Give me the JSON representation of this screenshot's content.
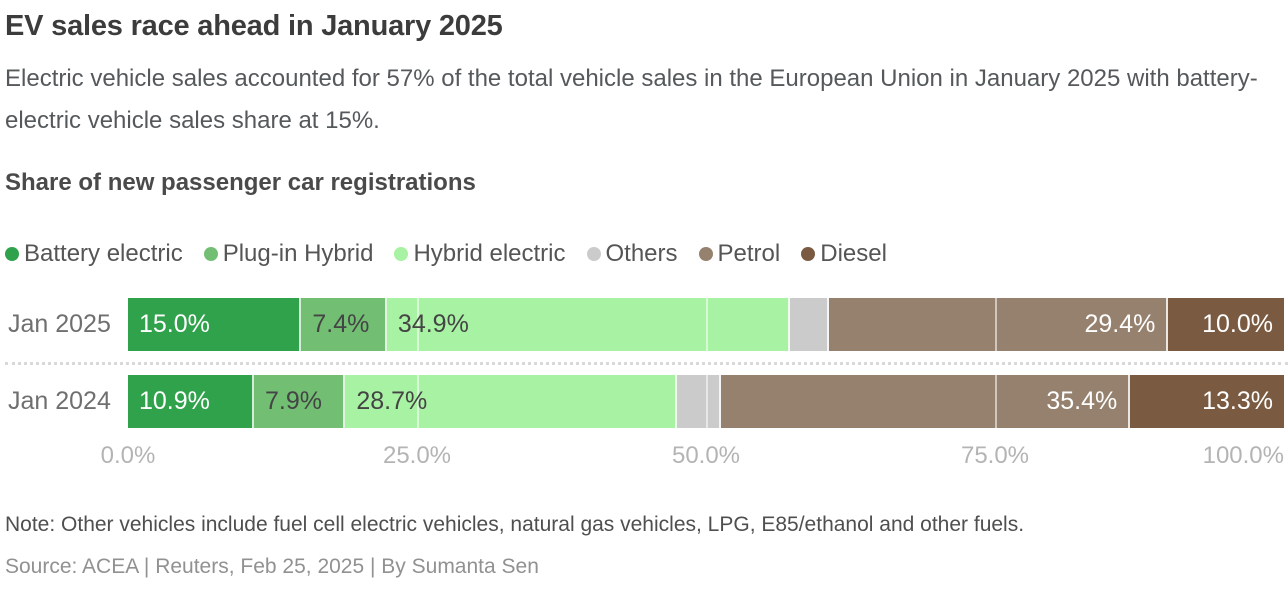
{
  "header": {
    "title": "EV sales race ahead in January 2025",
    "subtitle": "Electric vehicle sales accounted for 57% of the total vehicle sales in the European Union in January 2025 with battery-electric vehicle sales share at 15%.",
    "section_title": "Share of new passenger car registrations"
  },
  "chart_data": {
    "type": "bar",
    "orientation": "horizontal",
    "stacked": true,
    "categories": [
      "Jan 2025",
      "Jan 2024"
    ],
    "series": [
      {
        "name": "Battery electric",
        "color": "#31a24c",
        "label_color": "#ffffff",
        "label_side": "left",
        "values": [
          15.0,
          10.9
        ],
        "labels": [
          "15.0%",
          "10.9%"
        ]
      },
      {
        "name": "Plug-in Hybrid",
        "color": "#72bf74",
        "label_color": "#444444",
        "label_side": "left",
        "values": [
          7.4,
          7.9
        ],
        "labels": [
          "7.4%",
          "7.9%"
        ]
      },
      {
        "name": "Hybrid electric",
        "color": "#a8f2a3",
        "label_color": "#444444",
        "label_side": "left",
        "values": [
          34.9,
          28.7
        ],
        "labels": [
          "34.9%",
          "28.7%"
        ]
      },
      {
        "name": "Others",
        "color": "#cbcbcb",
        "label_color": null,
        "label_side": null,
        "values": [
          3.3,
          3.8
        ],
        "labels": [
          "",
          ""
        ]
      },
      {
        "name": "Petrol",
        "color": "#96816e",
        "label_color": "#ffffff",
        "label_side": "right",
        "values": [
          29.4,
          35.4
        ],
        "labels": [
          "29.4%",
          "35.4%"
        ]
      },
      {
        "name": "Diesel",
        "color": "#7a5b41",
        "label_color": "#ffffff",
        "label_side": "right",
        "values": [
          10.0,
          13.3
        ],
        "labels": [
          "10.0%",
          "13.3%"
        ]
      }
    ],
    "xlim": [
      0,
      100
    ],
    "gridlines": [
      25,
      50,
      75
    ],
    "x_ticks": [
      {
        "value": 0,
        "label": "0.0%"
      },
      {
        "value": 25,
        "label": "25.0%"
      },
      {
        "value": 50,
        "label": "50.0%"
      },
      {
        "value": 75,
        "label": "75.0%"
      },
      {
        "value": 100,
        "label": "100.0%"
      }
    ],
    "legend_position": "top",
    "grid": true
  },
  "footer": {
    "note": "Note: Other vehicles include fuel cell electric vehicles, natural gas vehicles, LPG, E85/ethanol and other fuels.",
    "source": "Source: ACEA | Reuters, Feb 25, 2025 | By Sumanta Sen"
  }
}
